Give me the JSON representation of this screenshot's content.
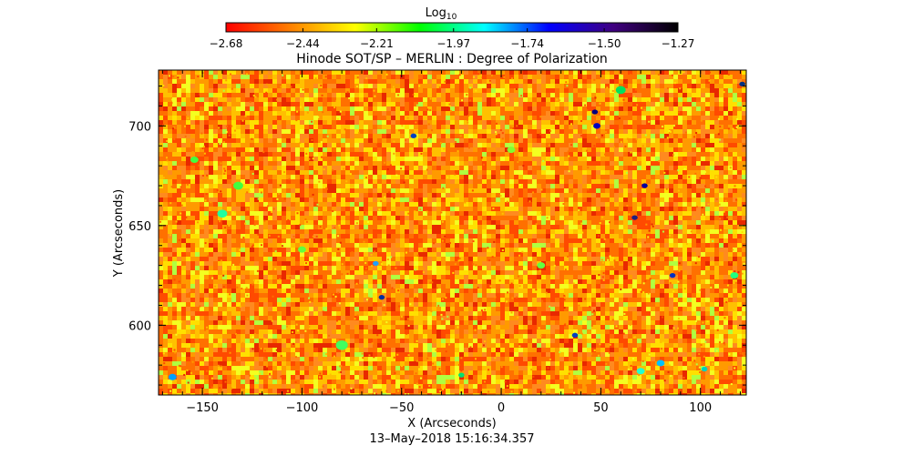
{
  "chart_data": {
    "type": "heatmap",
    "title": "Hinode SOT/SP – MERLIN : Degree of Polarization",
    "xlabel": "X (Arcseconds)",
    "ylabel": "Y (Arcseconds)",
    "xlim": [
      -172,
      123
    ],
    "ylim": [
      565,
      728
    ],
    "xticks": [
      -150,
      -100,
      -50,
      0,
      50,
      100
    ],
    "xtick_labels": [
      "−150",
      "−100",
      "−50",
      "0",
      "50",
      "100"
    ],
    "yticks": [
      600,
      650,
      700
    ],
    "ytick_labels": [
      "600",
      "650",
      "700"
    ],
    "timestamp": "13–May–2018 15:16:34.357",
    "colorbar": {
      "label_base": "Log",
      "label_sub": "10",
      "range": [
        -2.68,
        -1.27
      ],
      "ticks": [
        -2.68,
        -2.44,
        -2.21,
        -1.97,
        -1.74,
        -1.5,
        -1.27
      ],
      "tick_labels": [
        "−2.68",
        "−2.44",
        "−2.21",
        "−1.97",
        "−1.74",
        "−1.50",
        "−1.27"
      ],
      "colors": [
        "#ff0000",
        "#ff8000",
        "#ffff00",
        "#00ff00",
        "#00ffff",
        "#0000ff",
        "#400080",
        "#000000"
      ]
    },
    "field": {
      "background": "#ff8a1f",
      "texture_colors": [
        "#e82800",
        "#ff4a00",
        "#ff7000",
        "#ff9a00",
        "#ffc000",
        "#ffe000",
        "#f4ff20",
        "#b0ff40"
      ],
      "texture_weights": [
        0.06,
        0.16,
        0.22,
        0.2,
        0.14,
        0.1,
        0.08,
        0.04
      ],
      "features": [
        {
          "x": 60,
          "y": 718,
          "size": 2.5,
          "color": "#00e060"
        },
        {
          "x": 48,
          "y": 700,
          "size": 1.8,
          "color": "#0000c0"
        },
        {
          "x": 47,
          "y": 707,
          "size": 1.5,
          "color": "#000080"
        },
        {
          "x": -44,
          "y": 695,
          "size": 1.5,
          "color": "#0040c0"
        },
        {
          "x": 121,
          "y": 721,
          "size": 1.5,
          "color": "#003080"
        },
        {
          "x": 72,
          "y": 670,
          "size": 1.5,
          "color": "#0000a0"
        },
        {
          "x": 67,
          "y": 654,
          "size": 1.5,
          "color": "#202080"
        },
        {
          "x": 86,
          "y": 625,
          "size": 1.5,
          "color": "#0030c0"
        },
        {
          "x": -60,
          "y": 614,
          "size": 1.5,
          "color": "#0030a0"
        },
        {
          "x": 37,
          "y": 595,
          "size": 1.5,
          "color": "#0040c0"
        },
        {
          "x": -132,
          "y": 670,
          "size": 2.5,
          "color": "#40ff40"
        },
        {
          "x": -140,
          "y": 656,
          "size": 2.5,
          "color": "#20ffa0"
        },
        {
          "x": -80,
          "y": 590,
          "size": 3,
          "color": "#40ff60"
        },
        {
          "x": 70,
          "y": 577,
          "size": 2,
          "color": "#20ffd0"
        },
        {
          "x": 80,
          "y": 581,
          "size": 2,
          "color": "#00c0ff"
        },
        {
          "x": -165,
          "y": 574,
          "size": 2,
          "color": "#00a0ff"
        },
        {
          "x": 117,
          "y": 625,
          "size": 2,
          "color": "#20ff80"
        },
        {
          "x": 20,
          "y": 630,
          "size": 2,
          "color": "#60ff40"
        },
        {
          "x": -100,
          "y": 638,
          "size": 2,
          "color": "#60ff40"
        },
        {
          "x": 102,
          "y": 578,
          "size": 1.5,
          "color": "#00d0c0"
        },
        {
          "x": -20,
          "y": 575,
          "size": 1.5,
          "color": "#00e070"
        },
        {
          "x": -154,
          "y": 683,
          "size": 2,
          "color": "#40ff40"
        },
        {
          "x": 5,
          "y": 688,
          "size": 2,
          "color": "#80ff30"
        },
        {
          "x": -63,
          "y": 631,
          "size": 1.5,
          "color": "#20a0ff"
        }
      ]
    }
  }
}
